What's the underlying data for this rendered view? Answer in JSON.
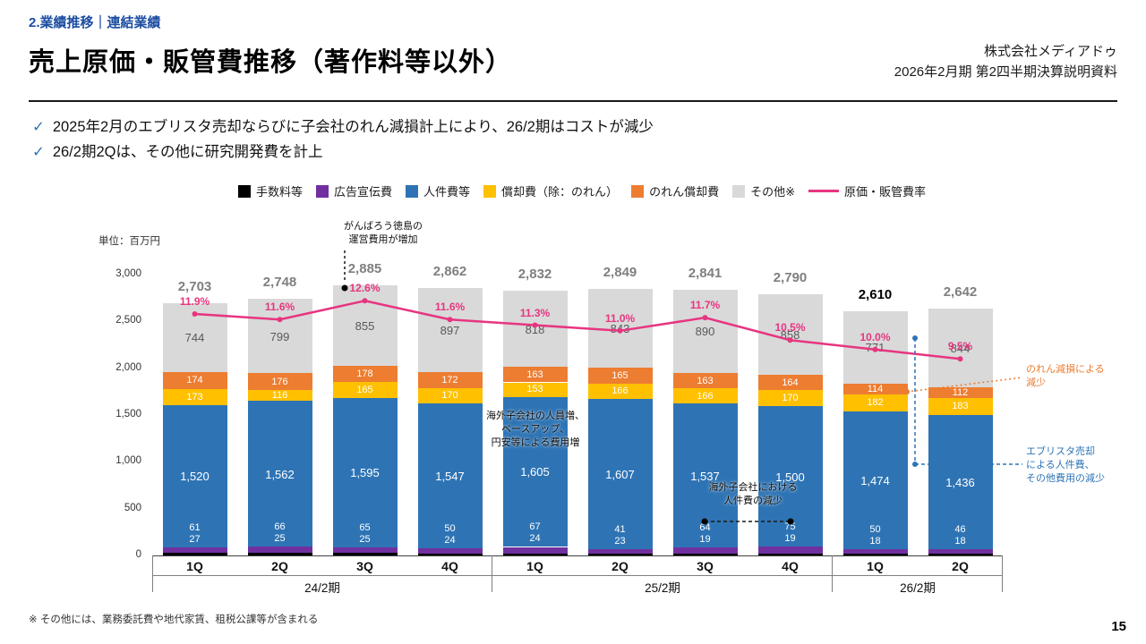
{
  "header": {
    "eyebrow": "2.業績推移｜連結業績",
    "title": "売上原価・販管費推移（著作料等以外）",
    "company": "株式会社メディアドゥ",
    "doc_info": "2026年2月期 第2四半期決算説明資料"
  },
  "bullets": [
    {
      "check": "✓",
      "text": "2025年2月のエブリスタ売却ならびに子会社のれん減損計上により、26/2期はコストが減少"
    },
    {
      "check": "✓",
      "text": "26/2期2Qは、その他に研究開発費を計上"
    }
  ],
  "footnote": "※ その他には、業務委託費や地代家賃、租税公課等が含まれる",
  "page_number": "15",
  "chart_data": {
    "type": "bar",
    "stacked": true,
    "unit_label": "単位：百万円",
    "ylim": [
      0,
      3000
    ],
    "yticks": [
      0,
      500,
      1000,
      1500,
      2000,
      2500,
      3000
    ],
    "categories": [
      "1Q",
      "2Q",
      "3Q",
      "4Q",
      "1Q",
      "2Q",
      "3Q",
      "4Q",
      "1Q",
      "2Q"
    ],
    "period_groups": [
      {
        "label": "24/2期",
        "span": 4
      },
      {
        "label": "25/2期",
        "span": 4
      },
      {
        "label": "26/2期",
        "span": 2
      }
    ],
    "series": [
      {
        "name": "手数料等",
        "color": "#000000",
        "values": [
          27,
          25,
          25,
          24,
          24,
          23,
          19,
          19,
          18,
          18
        ]
      },
      {
        "name": "広告宣伝費",
        "color": "#7030A0",
        "values": [
          61,
          66,
          65,
          50,
          67,
          41,
          64,
          75,
          50,
          46
        ]
      },
      {
        "name": "人件費等",
        "color": "#2E74B5",
        "values": [
          1520,
          1562,
          1595,
          1547,
          1605,
          1607,
          1537,
          1500,
          1474,
          1436
        ]
      },
      {
        "name": "償却費（除：のれん）",
        "color": "#FFC000",
        "values": [
          173,
          116,
          165,
          170,
          153,
          166,
          166,
          170,
          182,
          183
        ]
      },
      {
        "name": "のれん償却費",
        "color": "#ED7D31",
        "values": [
          174,
          176,
          178,
          172,
          163,
          165,
          163,
          164,
          114,
          112
        ]
      },
      {
        "name": "その他※",
        "color": "#D9D9D9",
        "values": [
          744,
          799,
          855,
          897,
          818,
          843,
          890,
          858,
          771,
          844
        ]
      }
    ],
    "totals": [
      "2,703",
      "2,748",
      "2,885",
      "2,862",
      "2,832",
      "2,849",
      "2,841",
      "2,790",
      "2,610",
      "2,642"
    ],
    "emphasized_total_index": 8,
    "line": {
      "name": "原価・販管費率",
      "color": "#E73580",
      "values": [
        11.9,
        11.6,
        12.6,
        11.6,
        11.3,
        11.0,
        11.7,
        10.5,
        10.0,
        9.5
      ]
    },
    "annotations": {
      "tokushima": {
        "text": "がんばろう徳島の\n運営費用が増加"
      },
      "overseas_increase": {
        "text": "海外子会社の人員増、\nベースアップ、\n円安等による費用増"
      },
      "overseas_decrease": {
        "text": "海外子会社における\n人件費の減少"
      },
      "goodwill_decrease": {
        "text": "のれん減損による\n減少"
      },
      "everystar_decrease": {
        "text": "エブリスタ売却\nによる人件費、\nその他費用の減少"
      }
    }
  }
}
